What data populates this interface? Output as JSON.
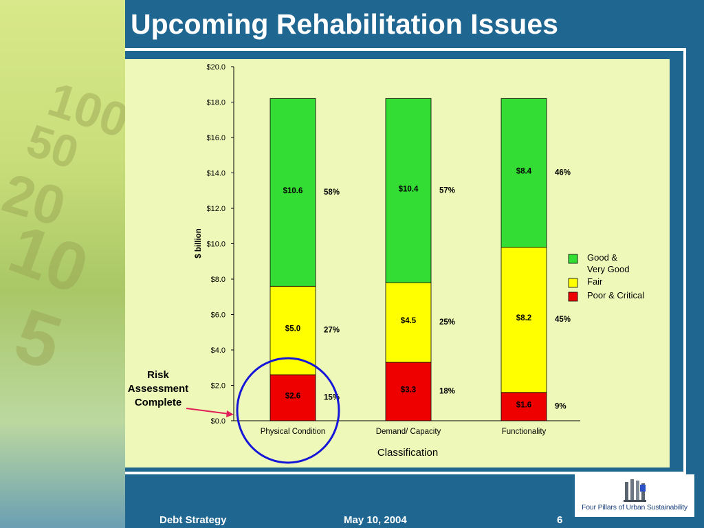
{
  "slide": {
    "title": "Upcoming Rehabilitation Issues"
  },
  "background": {
    "banknote_numerals": [
      "100",
      "50",
      "20",
      "10",
      "5"
    ]
  },
  "colors": {
    "good": "#33dd33",
    "fair": "#ffff00",
    "poor": "#ee0000",
    "circle": "#1616d8",
    "arrow": "#e0205a",
    "chart_bg": "#eef8b8",
    "slide_bg": "#1f6691"
  },
  "annotation": {
    "lines": [
      "Risk",
      "Assessment",
      "Complete"
    ]
  },
  "chart_data": {
    "type": "bar",
    "stacked": true,
    "categories": [
      "Physical Condition",
      "Demand/ Capacity",
      "Functionality"
    ],
    "series": [
      {
        "name": "Poor & Critical",
        "values": [
          2.6,
          3.3,
          1.6
        ],
        "labels": [
          "$2.6",
          "$3.3",
          "$1.6"
        ],
        "percents": [
          "15%",
          "18%",
          "9%"
        ]
      },
      {
        "name": "Fair",
        "values": [
          5.0,
          4.5,
          8.2
        ],
        "labels": [
          "$5.0",
          "$4.5",
          "$8.2"
        ],
        "percents": [
          "27%",
          "25%",
          "45%"
        ]
      },
      {
        "name": "Good & Very Good",
        "values": [
          10.6,
          10.4,
          8.4
        ],
        "labels": [
          "$10.6",
          "$10.4",
          "$8.4"
        ],
        "percents": [
          "58%",
          "57%",
          "46%"
        ]
      }
    ],
    "legend_lines": [
      [
        "Good &",
        "Very Good"
      ],
      [
        "Fair"
      ],
      [
        "Poor & Critical"
      ]
    ],
    "legend_position": "right",
    "xlabel": "Classification",
    "ylabel": "$ billion",
    "ylim": [
      0,
      20
    ],
    "yticks": [
      "$0.0",
      "$2.0",
      "$4.0",
      "$6.0",
      "$8.0",
      "$10.0",
      "$12.0",
      "$14.0",
      "$16.0",
      "$18.0",
      "$20.0"
    ],
    "grid": false
  },
  "logo": {
    "text": "Four Pillars of Urban Sustainability"
  },
  "footer": {
    "left": "Debt Strategy",
    "center": "May 10, 2004",
    "page": "6"
  }
}
